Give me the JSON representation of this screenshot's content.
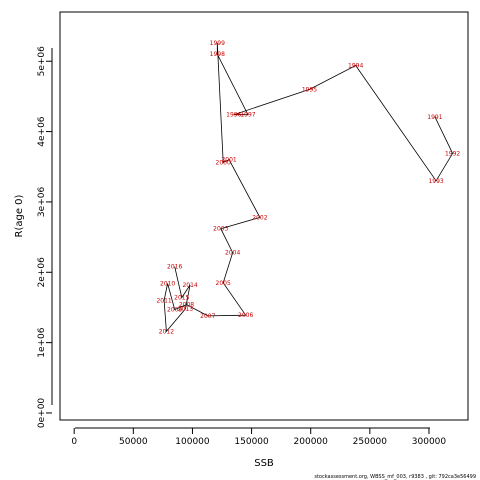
{
  "chart_data": {
    "type": "line",
    "title": "",
    "xlabel": "SSB",
    "ylabel": "R(age 0)",
    "xlim": [
      -12000,
      333000
    ],
    "ylim": [
      -100000,
      5700000
    ],
    "x_ticks": [
      0,
      50000,
      100000,
      150000,
      200000,
      250000,
      300000
    ],
    "x_tick_labels": [
      "0",
      "50000",
      "100000",
      "150000",
      "200000",
      "250000",
      "300000"
    ],
    "y_ticks": [
      0,
      1000000,
      2000000,
      3000000,
      4000000,
      5000000
    ],
    "y_tick_labels": [
      "0e+00",
      "1e+06",
      "2e+06",
      "3e+06",
      "4e+06",
      "5e+06"
    ],
    "grid": false,
    "line_color": "#000000",
    "label_color": "#cc0000",
    "points": [
      {
        "label": "1991",
        "x": 305000,
        "y": 4210000
      },
      {
        "label": "1992",
        "x": 320000,
        "y": 3690000
      },
      {
        "label": "1993",
        "x": 306000,
        "y": 3300000
      },
      {
        "label": "1994",
        "x": 238000,
        "y": 4940000
      },
      {
        "label": "1995",
        "x": 199000,
        "y": 4600000
      },
      {
        "label": "1996",
        "x": 135000,
        "y": 4240000
      },
      {
        "label": "1997",
        "x": 147000,
        "y": 4240000
      },
      {
        "label": "1998",
        "x": 121000,
        "y": 5100000
      },
      {
        "label": "1999",
        "x": 121000,
        "y": 5260000
      },
      {
        "label": "2000",
        "x": 126000,
        "y": 3560000
      },
      {
        "label": "2001",
        "x": 131000,
        "y": 3600000
      },
      {
        "label": "2002",
        "x": 157000,
        "y": 2780000
      },
      {
        "label": "2003",
        "x": 124000,
        "y": 2620000
      },
      {
        "label": "2004",
        "x": 134000,
        "y": 2280000
      },
      {
        "label": "2005",
        "x": 126000,
        "y": 1850000
      },
      {
        "label": "2006",
        "x": 145000,
        "y": 1390000
      },
      {
        "label": "2007",
        "x": 113000,
        "y": 1380000
      },
      {
        "label": "2008",
        "x": 95000,
        "y": 1540000
      },
      {
        "label": "2009",
        "x": 85000,
        "y": 1470000
      },
      {
        "label": "2010",
        "x": 79000,
        "y": 1840000
      },
      {
        "label": "2011",
        "x": 76000,
        "y": 1600000
      },
      {
        "label": "2012",
        "x": 78000,
        "y": 1160000
      },
      {
        "label": "2013",
        "x": 94000,
        "y": 1480000
      },
      {
        "label": "2014",
        "x": 98000,
        "y": 1820000
      },
      {
        "label": "2015",
        "x": 91000,
        "y": 1640000
      },
      {
        "label": "2016",
        "x": 85000,
        "y": 2080000
      }
    ]
  },
  "footer": "stockassessment.org, WBSS_mf_003, r9383 , git: 792ca3e56499"
}
